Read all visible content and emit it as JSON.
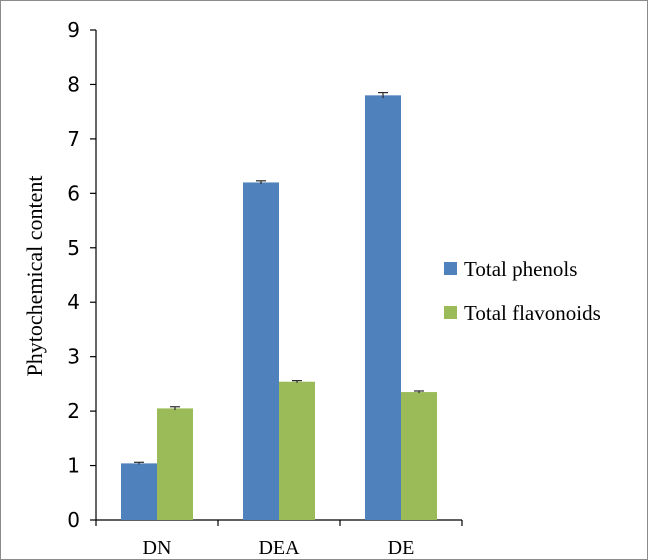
{
  "chart_data": {
    "type": "bar",
    "categories": [
      "DN",
      "DEA",
      "DE"
    ],
    "series": [
      {
        "name": "Total phenols",
        "values": [
          1.04,
          6.2,
          7.8
        ],
        "errors": [
          0.02,
          0.03,
          0.05
        ],
        "color": "#4f81bd"
      },
      {
        "name": "Total flavonoids",
        "values": [
          2.05,
          2.54,
          2.35
        ],
        "errors": [
          0.03,
          0.02,
          0.02
        ],
        "color": "#9bbb59"
      }
    ],
    "ylabel": "Phytochemical content",
    "xlabel": "",
    "ylim": [
      0,
      9
    ],
    "yticks": [
      0,
      1,
      2,
      3,
      4,
      5,
      6,
      7,
      8,
      9
    ],
    "grid": false,
    "legend_position": "right"
  }
}
